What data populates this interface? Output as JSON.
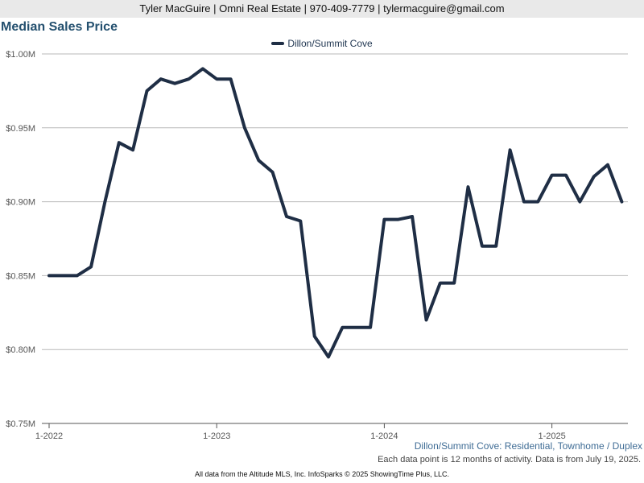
{
  "banner": {
    "text": "Tyler MacGuire | Omni Real Estate | 970-409-7779 | tylermacguire@gmail.com"
  },
  "chart_data": {
    "type": "line",
    "title": "Median Sales Price",
    "subtitle": "Dillon/Summit Cove: Residential, Townhome / Duplex",
    "note": "Each data point is 12 months of activity. Data is from July 19, 2025.",
    "footer": "All data from the Altitude MLS, Inc. InfoSparks © 2025 ShowingTime Plus, LLC.",
    "legend_position": "top-center",
    "grid": true,
    "y_ticks": [
      {
        "value": 0.75,
        "label": "$0.75M"
      },
      {
        "value": 0.8,
        "label": "$0.80M"
      },
      {
        "value": 0.85,
        "label": "$0.85M"
      },
      {
        "value": 0.9,
        "label": "$0.90M"
      },
      {
        "value": 0.95,
        "label": "$0.95M"
      },
      {
        "value": 1.0,
        "label": "$1.00M"
      }
    ],
    "ylim": [
      0.75,
      1.0
    ],
    "x_ticks": [
      {
        "value": "2022-01",
        "label": "1-2022"
      },
      {
        "value": "2023-01",
        "label": "1-2023"
      },
      {
        "value": "2024-01",
        "label": "1-2024"
      },
      {
        "value": "2025-01",
        "label": "1-2025"
      }
    ],
    "x": [
      "2022-01",
      "2022-02",
      "2022-03",
      "2022-04",
      "2022-05",
      "2022-06",
      "2022-07",
      "2022-08",
      "2022-09",
      "2022-10",
      "2022-11",
      "2022-12",
      "2023-01",
      "2023-02",
      "2023-03",
      "2023-04",
      "2023-05",
      "2023-06",
      "2023-07",
      "2023-08",
      "2023-09",
      "2023-10",
      "2023-11",
      "2023-12",
      "2024-01",
      "2024-02",
      "2024-03",
      "2024-04",
      "2024-05",
      "2024-06",
      "2024-07",
      "2024-08",
      "2024-09",
      "2024-10",
      "2024-11",
      "2024-12",
      "2025-01",
      "2025-02",
      "2025-03",
      "2025-04",
      "2025-05",
      "2025-06"
    ],
    "series": [
      {
        "name": "Dillon/Summit Cove",
        "color": "#1f2e45",
        "values": [
          0.85,
          0.85,
          0.85,
          0.856,
          0.9,
          0.94,
          0.935,
          0.975,
          0.983,
          0.98,
          0.983,
          0.99,
          0.983,
          0.983,
          0.95,
          0.928,
          0.92,
          0.89,
          0.887,
          0.809,
          0.795,
          0.815,
          0.815,
          0.815,
          0.888,
          0.888,
          0.89,
          0.82,
          0.845,
          0.845,
          0.91,
          0.87,
          0.87,
          0.935,
          0.9,
          0.9,
          0.918,
          0.918,
          0.9,
          0.917,
          0.925,
          0.9
        ]
      }
    ]
  }
}
